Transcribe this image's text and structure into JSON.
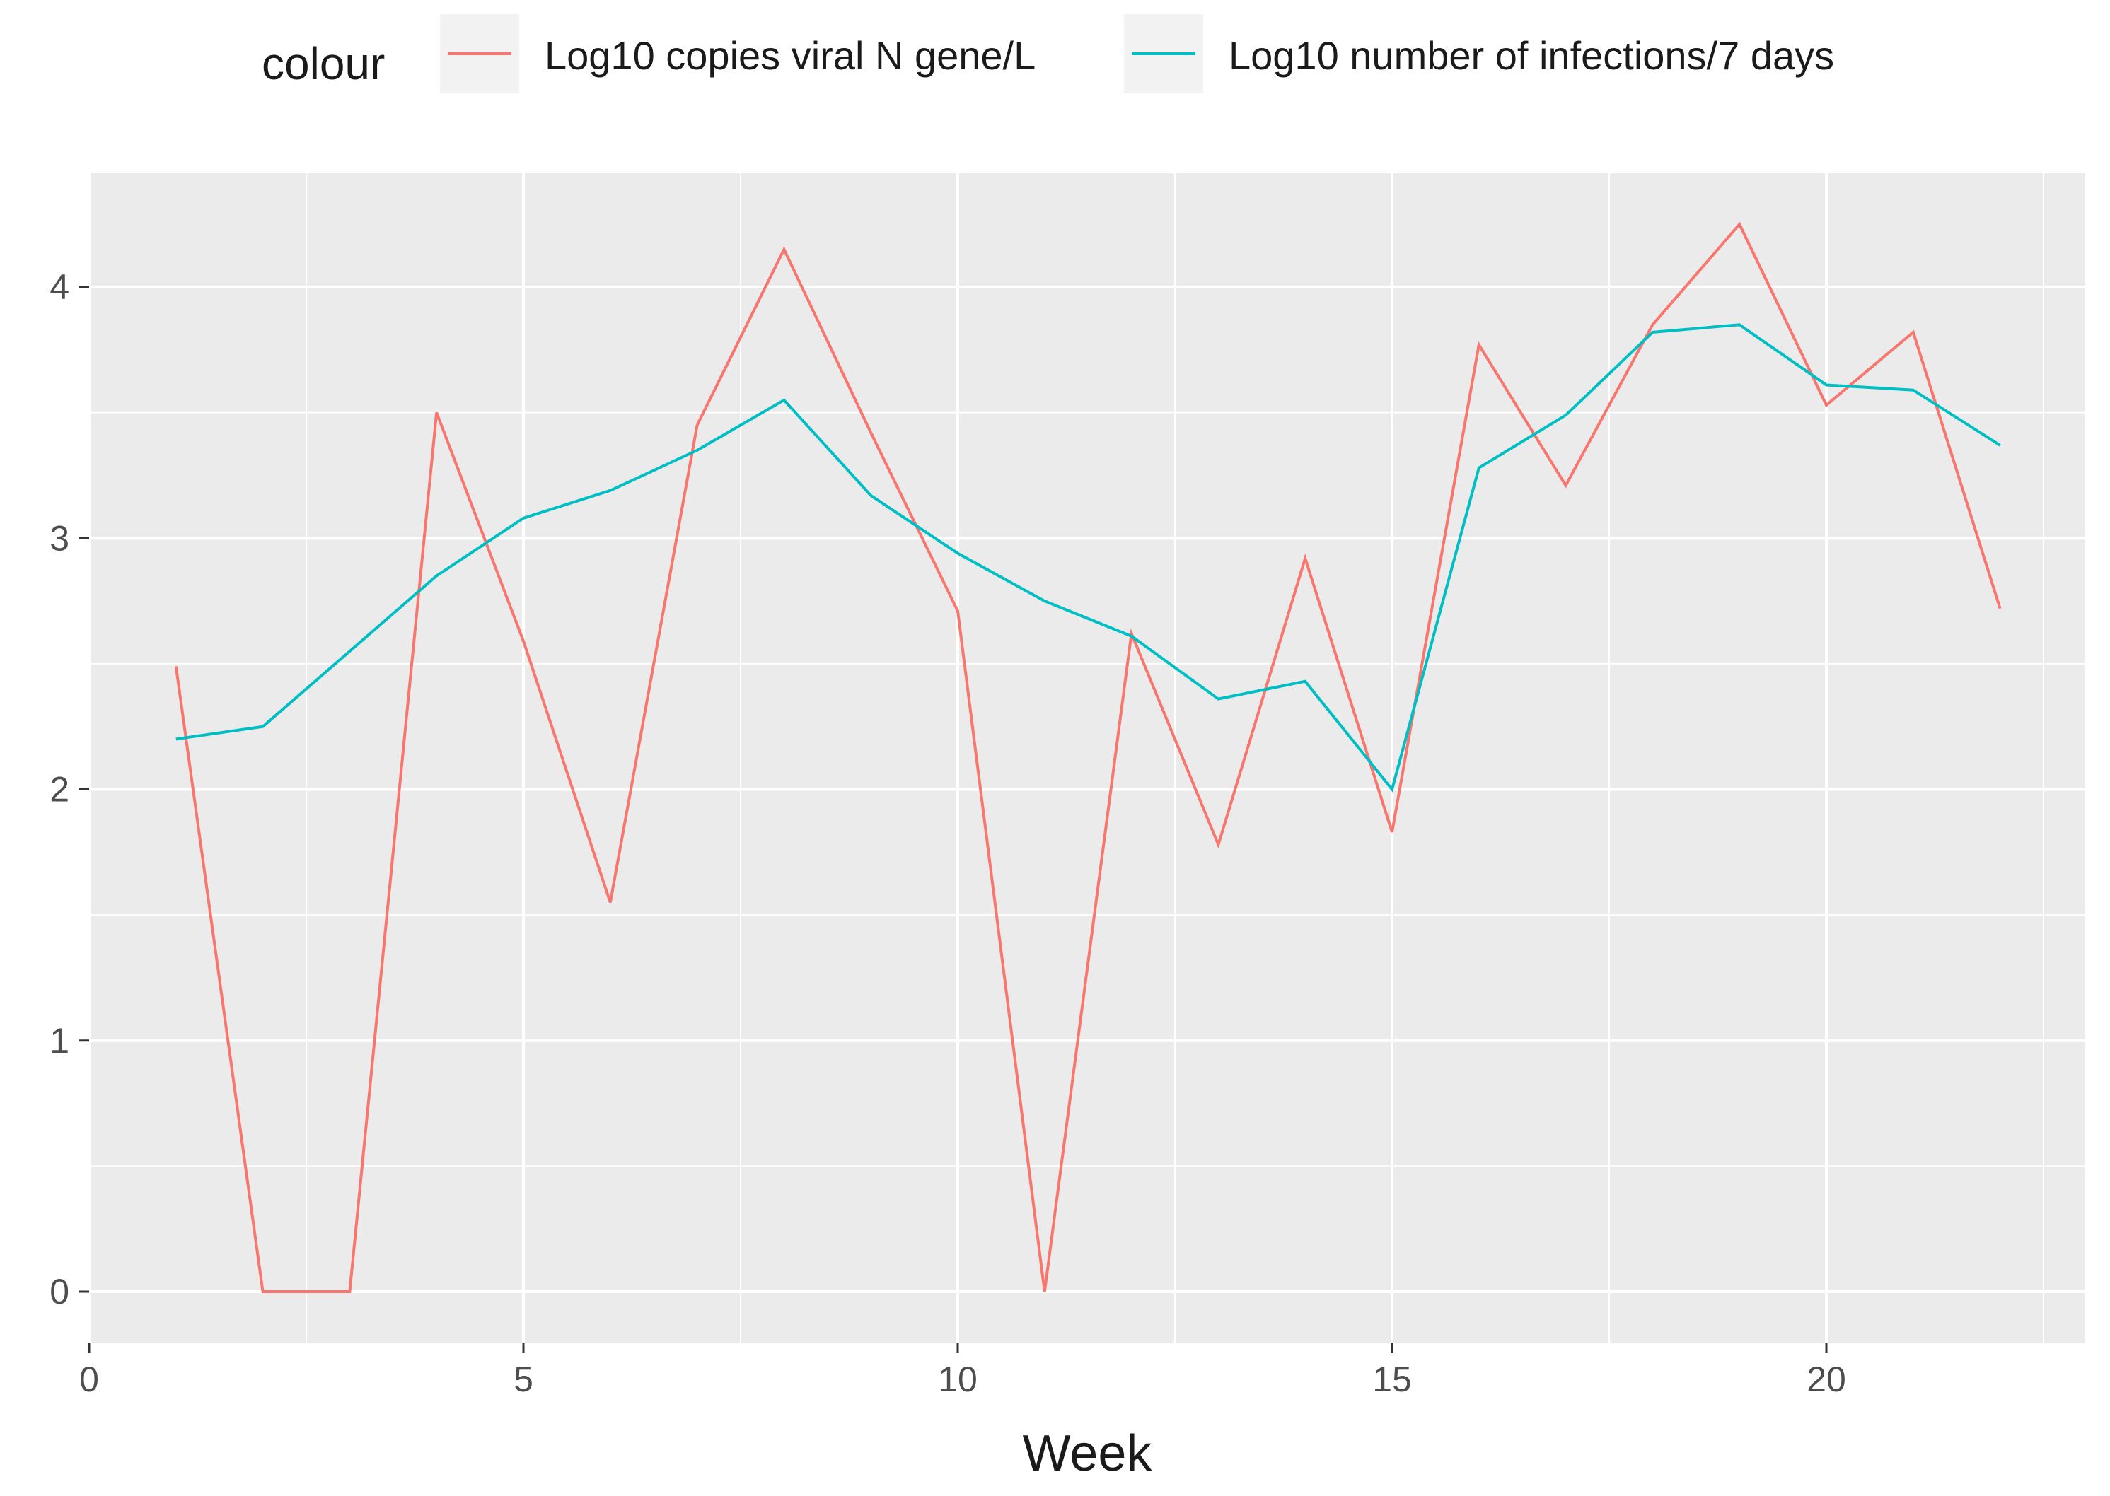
{
  "chart_data": {
    "type": "line",
    "title": "",
    "xlabel": "Week",
    "ylabel": "",
    "xlim": [
      0,
      22.5
    ],
    "ylim": [
      -0.2,
      4.5
    ],
    "x_ticks": [
      0,
      5,
      10,
      15,
      20
    ],
    "x_tick_labels": [
      "0",
      "5",
      "10",
      "15",
      "20"
    ],
    "y_ticks": [
      0,
      1,
      2,
      3,
      4
    ],
    "y_tick_labels": [
      "0",
      "1",
      "2",
      "3",
      "4"
    ],
    "grid": true,
    "background": "#ebebeb",
    "legend": {
      "title": "colour",
      "placement": "top"
    },
    "x": [
      1,
      2,
      3,
      4,
      5,
      6,
      7,
      8,
      9,
      10,
      11,
      12,
      13,
      14,
      15,
      16,
      17,
      18,
      19,
      20,
      21,
      22
    ],
    "series": [
      {
        "name": "Log10 copies viral N gene/L",
        "color": "#f8766d",
        "values": [
          2.49,
          0,
          0,
          3.5,
          2.59,
          1.55,
          3.45,
          4.15,
          3.42,
          2.71,
          0,
          2.62,
          1.78,
          2.92,
          1.83,
          3.77,
          3.21,
          3.85,
          4.25,
          3.53,
          3.82,
          2.72
        ]
      },
      {
        "name": "Log10 number of infections/7 days",
        "color": "#00bfc4",
        "values": [
          2.2,
          2.25,
          2.55,
          2.85,
          3.08,
          3.19,
          3.35,
          3.55,
          3.17,
          2.94,
          2.75,
          2.61,
          2.36,
          2.43,
          2.0,
          3.28,
          3.49,
          3.82,
          3.85,
          3.61,
          3.59,
          3.37
        ]
      }
    ]
  }
}
